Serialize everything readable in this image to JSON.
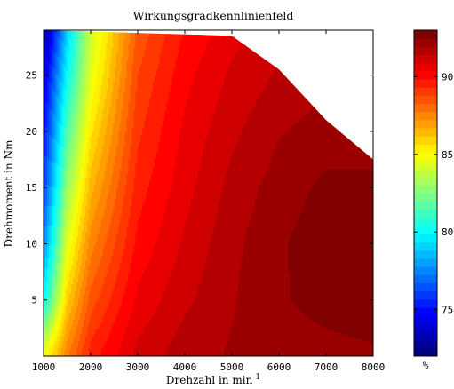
{
  "chart_data": {
    "type": "heatmap",
    "subtype": "filled-contour",
    "title": "Wirkungsgradkennlinienfeld",
    "xlabel_base": "Drehzahl in min",
    "xlabel_exp": "-1",
    "ylabel": "Drehmoment in Nm",
    "xlim": [
      1000,
      8000
    ],
    "ylim": [
      0,
      29
    ],
    "x_ticks": [
      1000,
      2000,
      3000,
      4000,
      5000,
      6000,
      7000,
      8000
    ],
    "y_ticks": [
      5,
      10,
      15,
      20,
      25
    ],
    "colorbar": {
      "label": "%",
      "range": [
        72,
        93
      ],
      "ticks": [
        75,
        80,
        85,
        90
      ],
      "colormap": "jet"
    },
    "max_torque_curve": {
      "x": [
        1000,
        5000,
        6000,
        7000,
        8000
      ],
      "y": [
        29,
        28.5,
        25.5,
        21,
        17.5
      ]
    },
    "efficiency_grid": {
      "x": [
        1000,
        1500,
        2000,
        3000,
        4000,
        5000,
        6000,
        7000,
        8000
      ],
      "y": [
        0.5,
        5,
        10,
        15,
        20,
        25,
        29
      ],
      "z": [
        [
          84.5,
          87.5,
          89.5,
          91.0,
          91.7,
          92.0,
          92.2,
          92.3,
          92.4
        ],
        [
          80.0,
          86.0,
          88.5,
          90.5,
          91.3,
          91.9,
          92.4,
          92.7,
          92.9
        ],
        [
          77.5,
          84.5,
          87.5,
          90.0,
          91.0,
          91.8,
          92.4,
          92.8,
          93.0
        ],
        [
          76.0,
          83.0,
          86.5,
          89.6,
          90.7,
          91.6,
          92.2,
          92.6,
          92.6
        ],
        [
          75.0,
          81.5,
          85.5,
          89.2,
          90.5,
          91.3,
          91.9,
          92.2,
          92.2
        ],
        [
          74.0,
          80.0,
          84.5,
          88.8,
          90.2,
          91.0,
          91.5,
          91.8,
          91.8
        ],
        [
          72.5,
          79.0,
          84.0,
          88.4,
          89.9,
          90.7,
          91.2,
          91.5,
          91.5
        ]
      ]
    }
  }
}
